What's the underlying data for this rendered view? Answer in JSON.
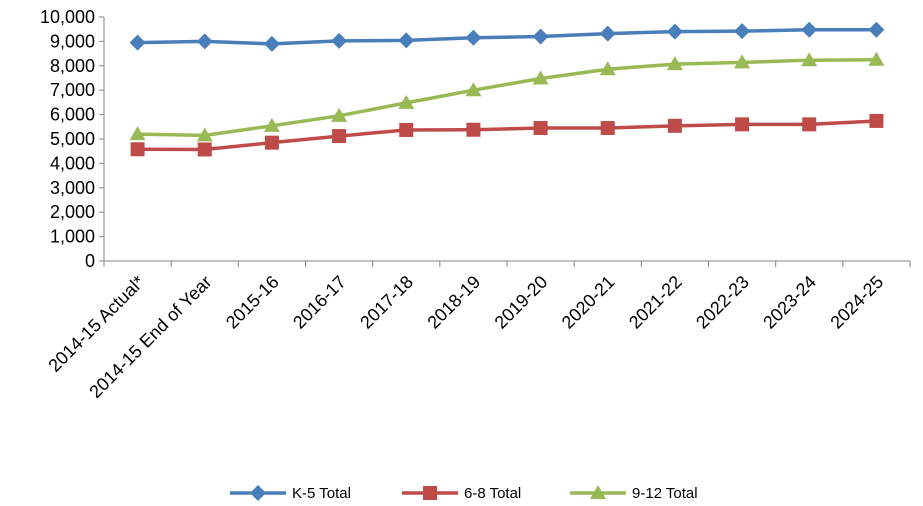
{
  "chart_data": {
    "type": "line",
    "categories": [
      "2014-15 Actual*",
      "2014-15 End of Year",
      "2015-16",
      "2016-17",
      "2017-18",
      "2018-19",
      "2019-20",
      "2020-21",
      "2021-22",
      "2022-23",
      "2023-24",
      "2024-25"
    ],
    "series": [
      {
        "name": "K-5 Total",
        "color": "#4a7ebb",
        "marker": "diamond",
        "values": [
          8950,
          9000,
          8900,
          9020,
          9040,
          9150,
          9200,
          9320,
          9400,
          9420,
          9480,
          9480
        ]
      },
      {
        "name": "6-8 Total",
        "color": "#be4b48",
        "marker": "square",
        "values": [
          4580,
          4570,
          4850,
          5120,
          5370,
          5380,
          5450,
          5450,
          5540,
          5600,
          5600,
          5740
        ]
      },
      {
        "name": "9-12 Total",
        "color": "#98b954",
        "marker": "triangle",
        "values": [
          5200,
          5150,
          5540,
          5950,
          6480,
          7000,
          7480,
          7860,
          8070,
          8140,
          8230,
          8250
        ]
      }
    ],
    "yticks": [
      "0",
      "1,000",
      "2,000",
      "3,000",
      "4,000",
      "5,000",
      "6,000",
      "7,000",
      "8,000",
      "9,000",
      "10,000"
    ],
    "ylim": [
      0,
      10000
    ],
    "grid": false,
    "legend_position": "bottom",
    "title": "",
    "xlabel": "",
    "ylabel": ""
  }
}
